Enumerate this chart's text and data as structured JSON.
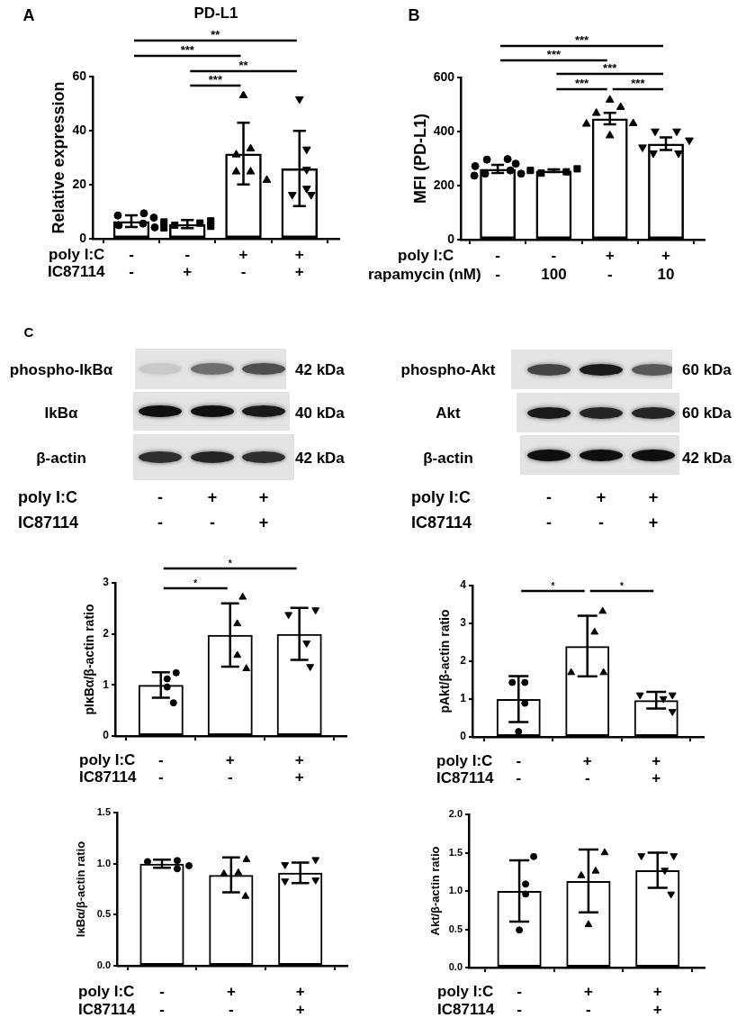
{
  "chart_data": [
    {
      "type": "bar",
      "title": "PD-L1",
      "ylabel": "Relative expression",
      "categories": [
        "-\n-",
        "-\n+",
        "+\n-",
        "+\n+"
      ],
      "ylim": [
        0,
        60
      ],
      "yticks": [
        0,
        20,
        40,
        60
      ],
      "annotations": [
        "A",
        "**",
        "***",
        "**",
        "***",
        "poly I:C",
        "IC87114"
      ],
      "series": [
        {
          "color": "#000000",
          "values": [
            6.5,
            5.4,
            31.5,
            26.0
          ],
          "errors": [
            2.2,
            1.5,
            11.4,
            13.9
          ]
        },
        {
          "type": "scatter",
          "marker": "circle",
          "color": "#000000",
          "x": [
            "-\n-",
            "-\n-",
            "-\n-",
            "-\n-",
            "-\n-",
            "-\n-"
          ],
          "values": [
            9.4,
            8.6,
            7.8,
            5.6,
            5.0,
            4.2
          ]
        },
        {
          "type": "scatter",
          "marker": "square",
          "color": "#000000",
          "x": [
            "-\n+",
            "-\n+",
            "-\n+",
            "-\n+",
            "-\n+",
            "-\n+"
          ],
          "values": [
            6.6,
            6.2,
            5.8,
            5.0,
            4.6,
            4.0
          ]
        },
        {
          "type": "scatter",
          "marker": "triangle",
          "color": "#000000",
          "x": [
            "+\n-",
            "+\n-",
            "+\n-",
            "+\n-",
            "+\n-",
            "+\n-"
          ],
          "values": [
            53.0,
            33.3,
            31.1,
            24.8,
            24.8,
            21.7
          ]
        },
        {
          "type": "scatter",
          "marker": "triangle",
          "color": "#000000",
          "x": [
            "+\n+",
            "+\n+",
            "+\n+",
            "+\n+",
            "+\n+",
            "+\n+"
          ],
          "values": [
            51.7,
            33.1,
            25.6,
            18.6,
            16.3,
            16.3
          ]
        }
      ]
    },
    {
      "type": "bar",
      "ylabel": "MFI (PD-L1)",
      "categories": [
        "-\n-",
        "-\n100",
        "+\n-",
        "+\n10"
      ],
      "ylim": [
        0,
        600
      ],
      "yticks": [
        0,
        200,
        400,
        600
      ],
      "annotations": [
        "B",
        "***",
        "***",
        "***",
        "***",
        "***",
        "poly I:C",
        "rapamycin (nM)"
      ],
      "series": [
        {
          "color": "#000000",
          "values": [
            262,
            255,
            448,
            355
          ],
          "errors": [
            15,
            5,
            21,
            23
          ]
        },
        {
          "type": "scatter",
          "marker": "circle",
          "color": "#000000",
          "x": [
            "-\n-",
            "-\n-",
            "-\n-",
            "-\n-",
            "-\n-",
            "-\n-",
            "-\n-",
            "-\n-"
          ],
          "values": [
            298,
            296,
            281,
            272,
            256,
            244,
            244,
            237
          ]
        },
        {
          "type": "scatter",
          "marker": "square",
          "color": "#000000",
          "x": [
            "-\n100",
            "-\n100",
            "-\n100",
            "-\n100"
          ],
          "values": [
            262,
            256,
            251,
            246
          ]
        },
        {
          "type": "scatter",
          "marker": "triangle",
          "color": "#000000",
          "x": [
            "+\n-",
            "+\n-",
            "+\n-",
            "+\n-",
            "+\n-",
            "+\n-"
          ],
          "values": [
            517,
            490,
            468,
            430,
            428,
            385
          ]
        },
        {
          "type": "scatter",
          "marker": "triangle",
          "color": "#000000",
          "x": [
            "+\n10",
            "+\n10",
            "+\n10",
            "+\n10",
            "+\n10",
            "+\n10"
          ],
          "values": [
            401,
            401,
            368,
            342,
            320,
            320
          ]
        }
      ]
    },
    {
      "type": "other",
      "categories": [
        "-\n-",
        "+\n-",
        "+\n+"
      ],
      "annotations": [
        "C",
        "phospho-IkBα",
        "IkBα",
        "β-actin",
        "42 kDa",
        "40 kDa",
        "42 kDa",
        "poly I:C",
        "IC87114"
      ]
    },
    {
      "type": "other",
      "categories": [
        "-\n-",
        "+\n-",
        "+\n+"
      ],
      "annotations": [
        "phospho-Akt",
        "Akt",
        "β-actin",
        "60 kDa",
        "60 kDa",
        "42 kDa",
        "poly I:C",
        "IC87114"
      ]
    },
    {
      "type": "bar",
      "ylabel": "pIκBα/β-actin ratio",
      "categories": [
        "-\n-",
        "+\n-",
        "+\n+"
      ],
      "ylim": [
        0,
        3
      ],
      "yticks": [
        0,
        1,
        2,
        3
      ],
      "annotations": [
        "*",
        "*",
        "poly I:C",
        "IC87114"
      ],
      "series": [
        {
          "color": "#000000",
          "values": [
            1.0,
            1.98,
            2.0
          ],
          "errors": [
            0.25,
            0.62,
            0.51
          ]
        },
        {
          "type": "scatter",
          "marker": "circle",
          "color": "#000000",
          "x": [
            "-\n-",
            "-\n-",
            "-\n-",
            "-\n-"
          ],
          "values": [
            1.24,
            1.12,
            0.96,
            0.65
          ]
        },
        {
          "type": "scatter",
          "marker": "triangle",
          "color": "#000000",
          "x": [
            "+\n-",
            "+\n-",
            "+\n-",
            "+\n-"
          ],
          "values": [
            2.72,
            2.2,
            1.58,
            1.32
          ]
        },
        {
          "type": "scatter",
          "marker": "triangle",
          "color": "#000000",
          "x": [
            "+\n+",
            "+\n+",
            "+\n+",
            "+\n+"
          ],
          "values": [
            2.47,
            2.38,
            1.82,
            1.36
          ]
        }
      ]
    },
    {
      "type": "bar",
      "ylabel": "pAkt/β-actin ratio",
      "categories": [
        "-\n-",
        "+\n-",
        "+\n+"
      ],
      "ylim": [
        0,
        4
      ],
      "yticks": [
        0,
        1,
        2,
        3,
        4
      ],
      "annotations": [
        "*",
        "*",
        "poly I:C",
        "IC87114"
      ],
      "series": [
        {
          "color": "#000000",
          "values": [
            1.0,
            2.4,
            0.97
          ],
          "errors": [
            0.61,
            0.8,
            0.22
          ]
        },
        {
          "type": "scatter",
          "marker": "circle",
          "color": "#000000",
          "x": [
            "-\n-",
            "-\n-",
            "-\n-",
            "-\n-"
          ],
          "values": [
            1.44,
            1.44,
            0.89,
            0.14
          ]
        },
        {
          "type": "scatter",
          "marker": "triangle",
          "color": "#000000",
          "x": [
            "+\n-",
            "+\n-",
            "+\n-",
            "+\n-"
          ],
          "values": [
            3.32,
            2.77,
            1.7,
            1.7
          ]
        },
        {
          "type": "scatter",
          "marker": "triangle",
          "color": "#000000",
          "x": [
            "+\n+",
            "+\n+",
            "+\n+",
            "+\n+"
          ],
          "values": [
            1.11,
            1.11,
            1.01,
            0.67
          ]
        }
      ]
    },
    {
      "type": "bar",
      "ylabel": "IκBα/β-actin ratio",
      "categories": [
        "-\n-",
        "+\n-",
        "+\n+"
      ],
      "ylim": [
        0,
        1.5
      ],
      "yticks": [
        {
          "value": 0,
          "label": "0.0"
        },
        0.5,
        {
          "value": 1,
          "label": "1.0"
        },
        1.5
      ],
      "annotations": [
        "poly I:C",
        "IC87114"
      ],
      "series": [
        {
          "color": "#000000",
          "values": [
            1.0,
            0.89,
            0.91
          ],
          "errors": [
            0.04,
            0.17,
            0.1
          ]
        },
        {
          "type": "scatter",
          "marker": "circle",
          "color": "#000000",
          "x": [
            "-\n-",
            "-\n-",
            "-\n-",
            "-\n-"
          ],
          "values": [
            1.03,
            1.02,
            0.98,
            0.95
          ]
        },
        {
          "type": "scatter",
          "marker": "triangle",
          "color": "#000000",
          "x": [
            "+\n-",
            "+\n-",
            "+\n-",
            "+\n-"
          ],
          "values": [
            1.04,
            0.91,
            0.9,
            0.68
          ]
        },
        {
          "type": "scatter",
          "marker": "triangle",
          "color": "#000000",
          "x": [
            "+\n+",
            "+\n+",
            "+\n+",
            "+\n+"
          ],
          "values": [
            1.04,
            0.99,
            0.84,
            0.83
          ]
        }
      ]
    },
    {
      "type": "bar",
      "ylabel": "Akt/β-actin ratio",
      "categories": [
        "-\n-",
        "+\n-",
        "+\n+"
      ],
      "ylim": [
        0,
        2
      ],
      "yticks": [
        {
          "value": 0,
          "label": "0.0"
        },
        0.5,
        {
          "value": 1,
          "label": "1.0"
        },
        1.5,
        {
          "value": 2,
          "label": "2.0"
        }
      ],
      "annotations": [
        "poly I:C",
        "IC87114"
      ],
      "series": [
        {
          "color": "#000000",
          "values": [
            1.0,
            1.13,
            1.27
          ],
          "errors": [
            0.4,
            0.41,
            0.23
          ]
        },
        {
          "type": "scatter",
          "marker": "circle",
          "color": "#000000",
          "x": [
            "-\n-",
            "-\n-",
            "-\n-",
            "-\n-"
          ],
          "values": [
            1.45,
            1.09,
            0.96,
            0.49
          ]
        },
        {
          "type": "scatter",
          "marker": "triangle",
          "color": "#000000",
          "x": [
            "+\n-",
            "+\n-",
            "+\n-",
            "+\n-"
          ],
          "values": [
            1.5,
            1.26,
            1.2,
            0.56
          ]
        },
        {
          "type": "scatter",
          "marker": "triangle",
          "color": "#000000",
          "x": [
            "+\n+",
            "+\n+",
            "+\n+",
            "+\n+"
          ],
          "values": [
            1.46,
            1.46,
            1.27,
            0.96
          ]
        }
      ]
    }
  ]
}
